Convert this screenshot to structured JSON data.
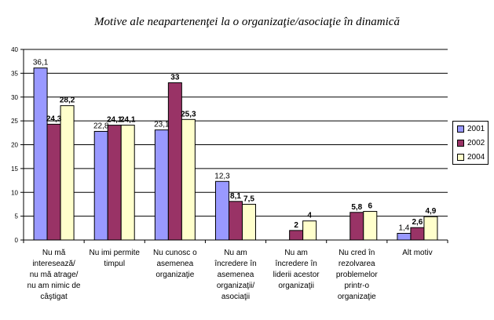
{
  "chart_data": {
    "type": "bar",
    "title": "Motive ale neapartenenţei la o organizaţie/asociaţie în dinamică",
    "categories": [
      [
        "Nu mă",
        "interesează/",
        "nu mă atrage/",
        "nu am nimic de",
        "câştigat"
      ],
      [
        "Nu imi permite",
        "timpul"
      ],
      [
        "Nu cunosc o",
        "asemenea",
        "organizaţie"
      ],
      [
        "Nu am",
        "încredere în",
        "asemenea",
        "organizaţii/",
        "asociaţii"
      ],
      [
        "Nu am",
        "încredere în",
        "liderii acestor",
        "organizaţii"
      ],
      [
        "Nu cred în",
        "rezolvarea",
        "problemelor",
        "printr-o",
        "organizaţie"
      ],
      [
        "Alt motiv"
      ]
    ],
    "series": [
      {
        "name": "2001",
        "color": "#9999ff",
        "values": [
          36.1,
          22.8,
          23.1,
          12.3,
          null,
          null,
          1.4
        ],
        "labels": [
          "36,1",
          "22,8",
          "23,1",
          "12,3",
          "",
          "",
          "1,4"
        ],
        "bold": false
      },
      {
        "name": "2002",
        "color": "#993366",
        "values": [
          24.3,
          24.1,
          33,
          8.1,
          2,
          5.8,
          2.6
        ],
        "labels": [
          "24,3",
          "24,1",
          "33",
          "8,1",
          "2",
          "5,8",
          "2,6"
        ],
        "bold": true
      },
      {
        "name": "2004",
        "color": "#ffffcc",
        "values": [
          28.2,
          24.1,
          25.3,
          7.5,
          4,
          6,
          4.9
        ],
        "labels": [
          "28,2",
          "24,1",
          "25,3",
          "7,5",
          "4",
          "6",
          "4,9"
        ],
        "bold": true
      }
    ],
    "ylim": [
      0,
      40
    ],
    "yticks": [
      0,
      5,
      10,
      15,
      20,
      25,
      30,
      35,
      40
    ],
    "grid": true,
    "legend": "right"
  }
}
